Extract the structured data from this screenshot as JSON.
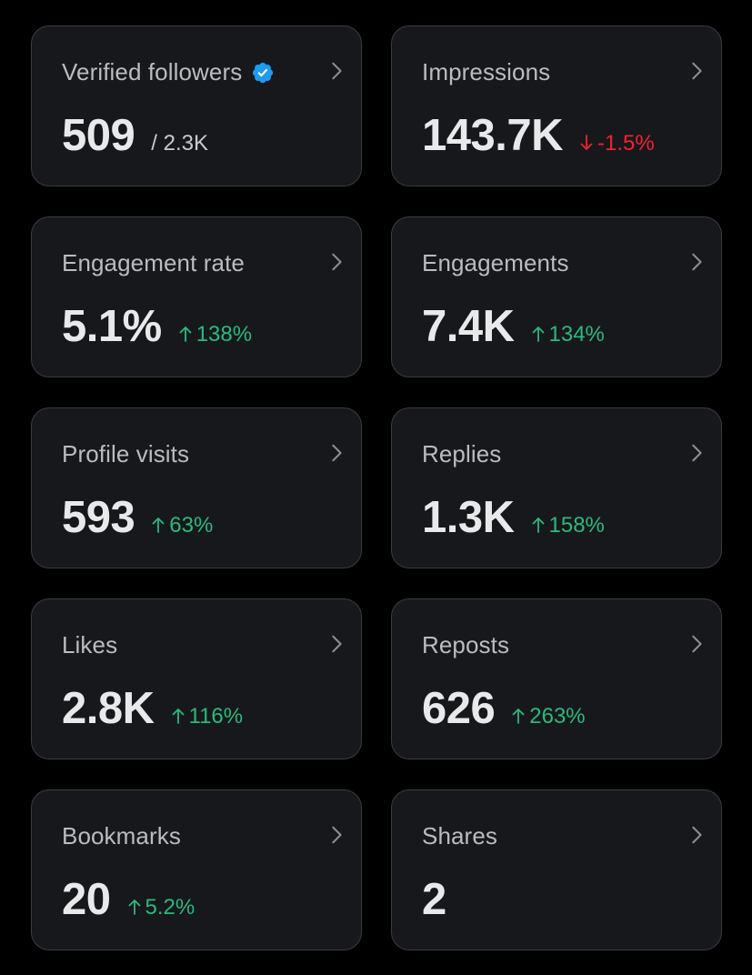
{
  "colors": {
    "background": "#000000",
    "card": "#16181c",
    "card_border": "#3a3d42",
    "positive": "#2bba7d",
    "negative": "#f4212e",
    "verified": "#1d9bf0"
  },
  "cards": [
    {
      "title": "Verified followers",
      "value": "509",
      "secondary": "/ 2.3K",
      "delta": "",
      "trend": "none",
      "verified": true
    },
    {
      "title": "Impressions",
      "value": "143.7K",
      "secondary": "",
      "delta": "-1.5%",
      "trend": "down"
    },
    {
      "title": "Engagement rate",
      "value": "5.1%",
      "secondary": "",
      "delta": "138%",
      "trend": "up"
    },
    {
      "title": "Engagements",
      "value": "7.4K",
      "secondary": "",
      "delta": "134%",
      "trend": "up"
    },
    {
      "title": "Profile visits",
      "value": "593",
      "secondary": "",
      "delta": "63%",
      "trend": "up"
    },
    {
      "title": "Replies",
      "value": "1.3K",
      "secondary": "",
      "delta": "158%",
      "trend": "up"
    },
    {
      "title": "Likes",
      "value": "2.8K",
      "secondary": "",
      "delta": "116%",
      "trend": "up"
    },
    {
      "title": "Reposts",
      "value": "626",
      "secondary": "",
      "delta": "263%",
      "trend": "up"
    },
    {
      "title": "Bookmarks",
      "value": "20",
      "secondary": "",
      "delta": "5.2%",
      "trend": "up"
    },
    {
      "title": "Shares",
      "value": "2",
      "secondary": "",
      "delta": "",
      "trend": "none"
    }
  ],
  "icons": {
    "chevron": "chevron-right-icon",
    "verified": "verified-badge-icon",
    "up": "arrow-up-icon",
    "down": "arrow-down-icon"
  }
}
